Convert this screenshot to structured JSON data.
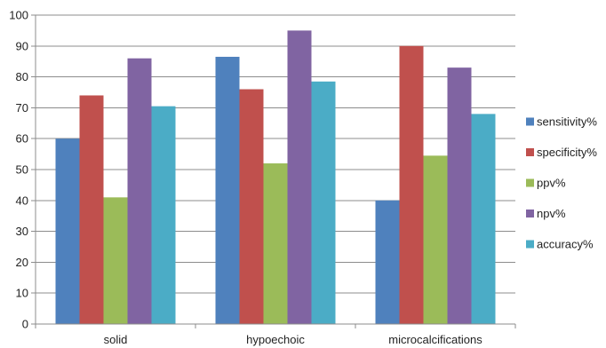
{
  "chart_data": {
    "type": "bar",
    "categories": [
      "solid",
      "hypoechoic",
      "microcalcifications"
    ],
    "series": [
      {
        "name": "sensitivity%",
        "color": "#4f81bd",
        "values": [
          60,
          86.5,
          40
        ]
      },
      {
        "name": "specificity%",
        "color": "#c0504d",
        "values": [
          74,
          76,
          90
        ]
      },
      {
        "name": "ppv%",
        "color": "#9bbb59",
        "values": [
          41,
          52,
          54.5
        ]
      },
      {
        "name": "npv%",
        "color": "#8064a2",
        "values": [
          86,
          95,
          83
        ]
      },
      {
        "name": "accuracy%",
        "color": "#4bacc6",
        "values": [
          70.5,
          78.5,
          68
        ]
      }
    ],
    "ylim": [
      0,
      100
    ],
    "yticks": [
      "0",
      "10",
      "20",
      "30",
      "40",
      "50",
      "60",
      "70",
      "80",
      "90",
      "100"
    ],
    "grid": true,
    "legend_position": "right"
  }
}
